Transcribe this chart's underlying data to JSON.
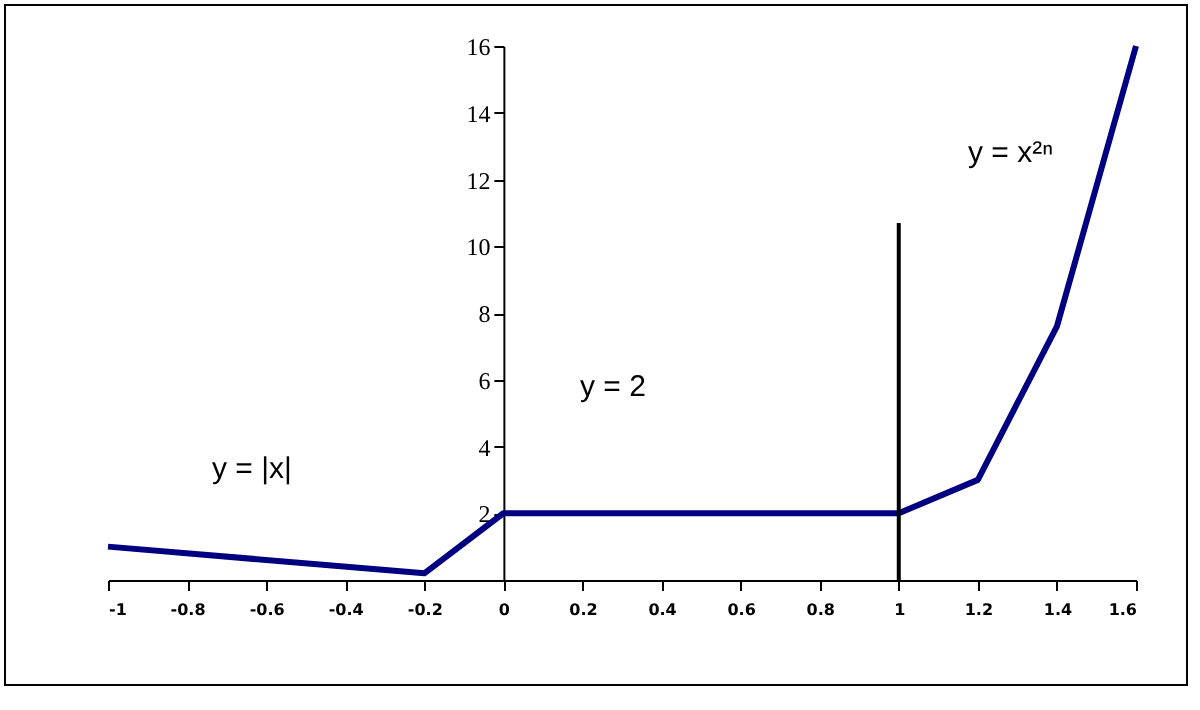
{
  "chart_data": {
    "type": "line",
    "series": [
      {
        "color": "#000080",
        "x": [
          -1,
          -0.2,
          0,
          1,
          1.2,
          1.4,
          1.6
        ],
        "values": [
          1,
          0.2,
          2,
          2,
          3,
          7.6,
          16
        ]
      },
      {
        "color": "#000000",
        "x": [
          1,
          1
        ],
        "values": [
          0,
          10.7
        ]
      }
    ],
    "xlim": [
      -1,
      1.6
    ],
    "xticks": [
      -1,
      -0.8,
      -0.6,
      -0.4,
      -0.2,
      0,
      0.2,
      0.4,
      0.6,
      0.8,
      1,
      1.2,
      1.4,
      1.6
    ],
    "ylim": [
      0,
      16
    ],
    "yticks": [
      2,
      4,
      6,
      8,
      10,
      12,
      14,
      16
    ],
    "annotations": [
      "y = |x|",
      "y = 2",
      "y = x²ⁿ"
    ],
    "grid": false
  }
}
